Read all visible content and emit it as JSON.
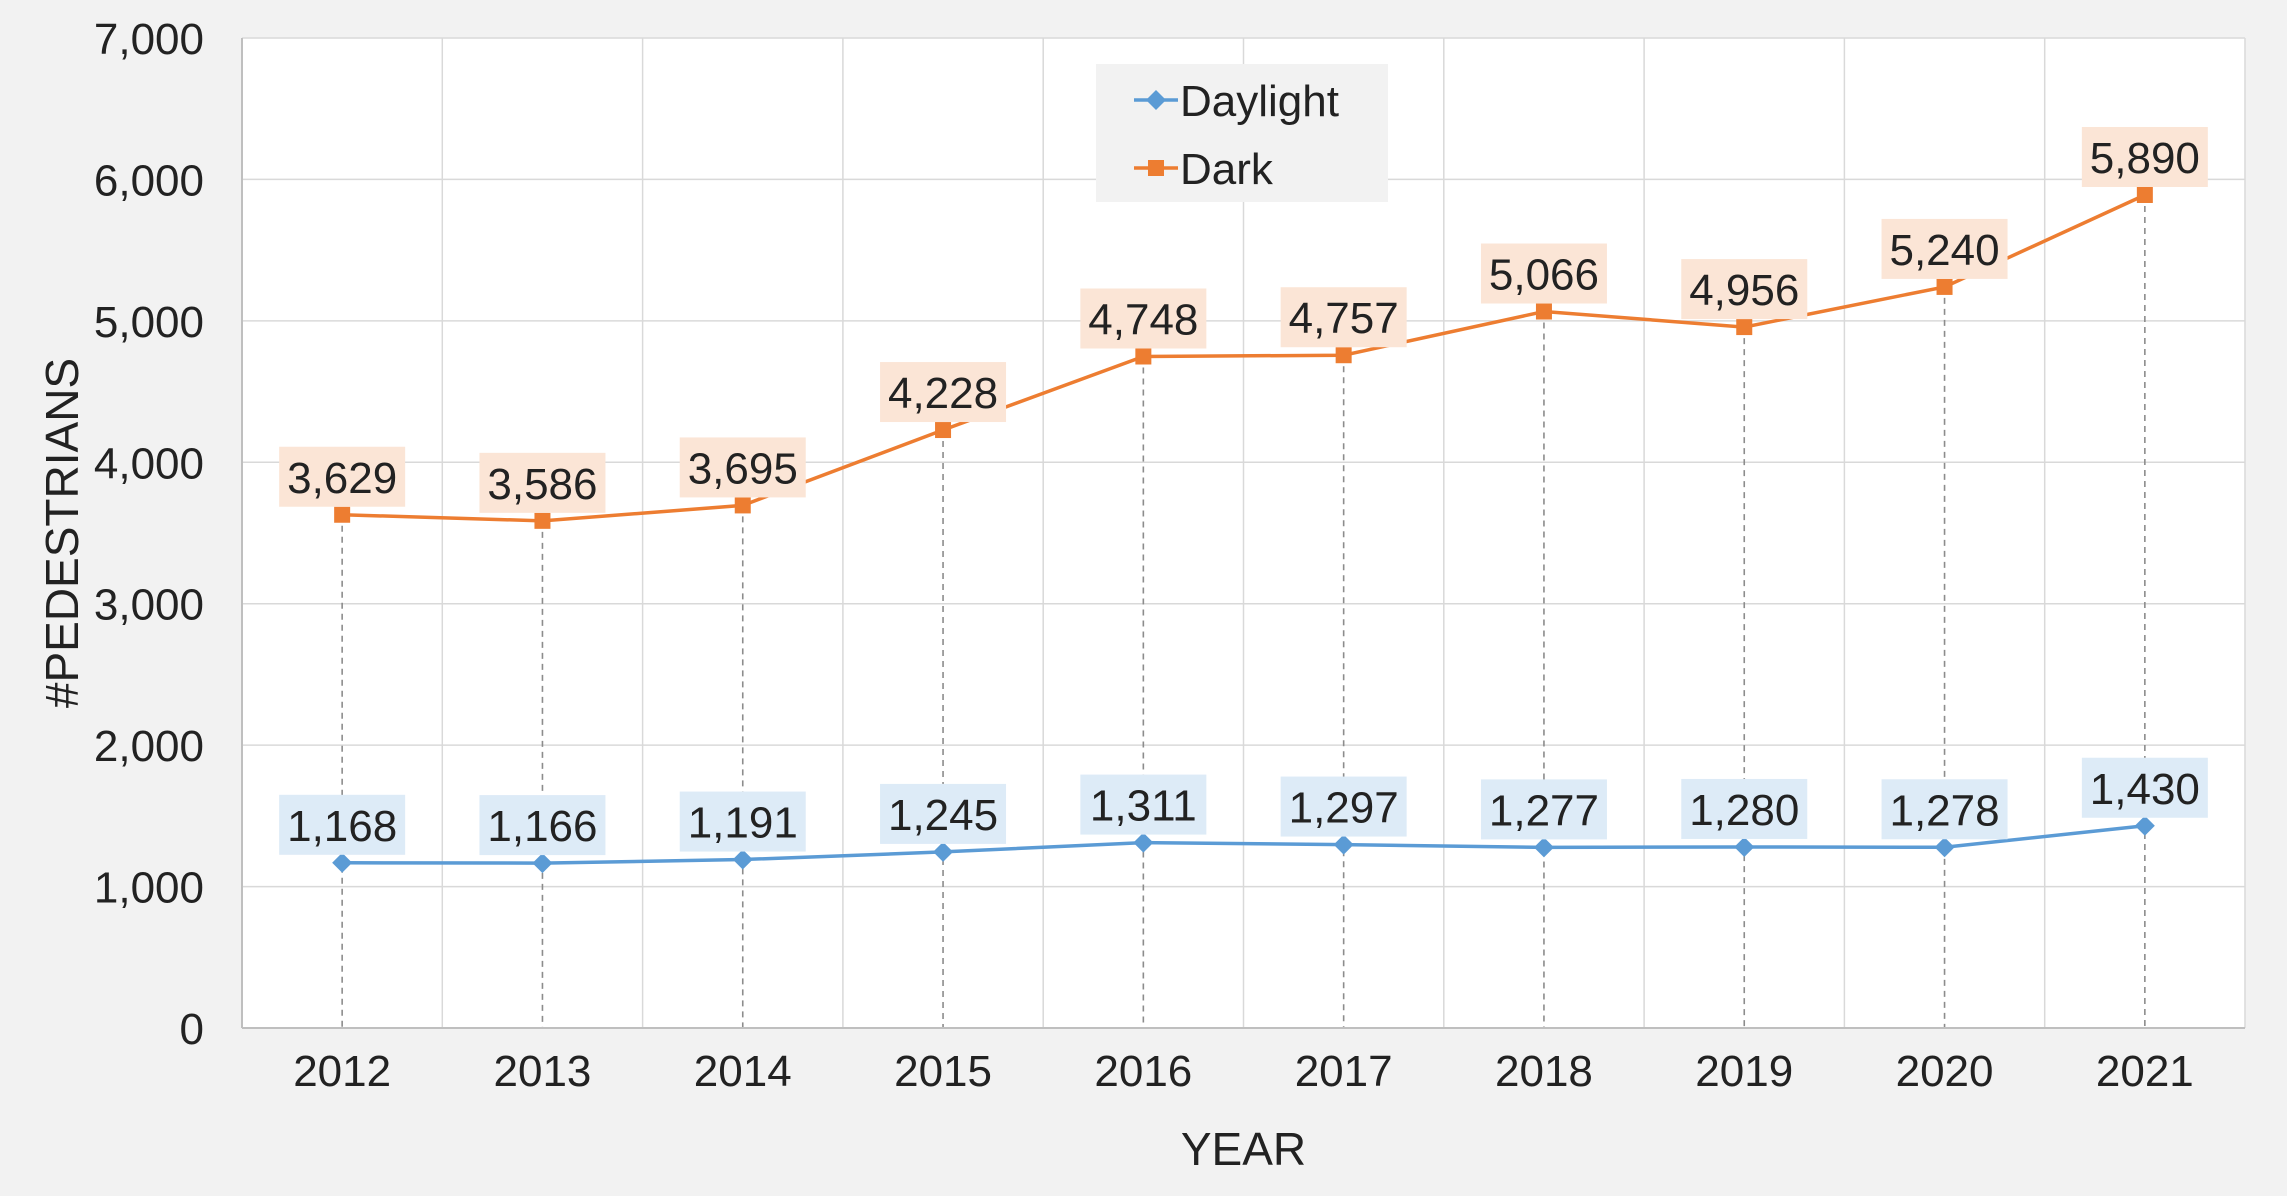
{
  "chart_data": {
    "type": "line",
    "xlabel": "YEAR",
    "ylabel": "#PEDESTRIANS",
    "ylim": [
      0,
      7000
    ],
    "yticks": [
      0,
      1000,
      2000,
      3000,
      4000,
      5000,
      6000,
      7000
    ],
    "ytick_labels": [
      "0",
      "1,000",
      "2,000",
      "3,000",
      "4,000",
      "5,000",
      "6,000",
      "7,000"
    ],
    "categories": [
      "2012",
      "2013",
      "2014",
      "2015",
      "2016",
      "2017",
      "2018",
      "2019",
      "2020",
      "2021"
    ],
    "grid": true,
    "legend_position": "top-center",
    "series": [
      {
        "name": "Daylight",
        "color": "#5b9bd5",
        "label_bg": "#ddebf7",
        "marker": "diamond",
        "values": [
          1168,
          1166,
          1191,
          1245,
          1311,
          1297,
          1277,
          1280,
          1278,
          1430
        ],
        "labels": [
          "1,168",
          "1,166",
          "1,191",
          "1,245",
          "1,311",
          "1,297",
          "1,277",
          "1,280",
          "1,278",
          "1,430"
        ]
      },
      {
        "name": "Dark",
        "color": "#ed7d31",
        "label_bg": "#fbe5d6",
        "marker": "square",
        "values": [
          3629,
          3586,
          3695,
          4228,
          4748,
          4757,
          5066,
          4956,
          5240,
          5890
        ],
        "labels": [
          "3,629",
          "3,586",
          "3,695",
          "4,228",
          "4,748",
          "4,757",
          "5,066",
          "4,956",
          "5,240",
          "5,890"
        ]
      }
    ]
  }
}
